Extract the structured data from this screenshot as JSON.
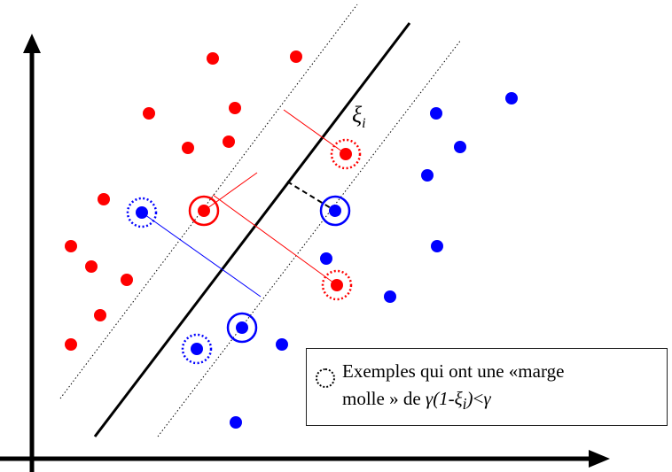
{
  "colors": {
    "class_red": "#ff0000",
    "class_blue": "#0000ff",
    "margin_marker": "#000000",
    "axis": "#000000"
  },
  "annotation": {
    "slack_symbol": "ξ",
    "slack_subscript": "i"
  },
  "legend": {
    "icon": "dotted-circle-icon",
    "line1": "Exemples qui ont une  «marge",
    "line2_prefix": "molle » de ",
    "line2_math_gamma": "γ",
    "line2_math_open": "(1-ξ",
    "line2_math_sub": "i",
    "line2_math_close": ")",
    "line2_math_lt": "<",
    "line2_math_gamma2": "γ"
  }
}
